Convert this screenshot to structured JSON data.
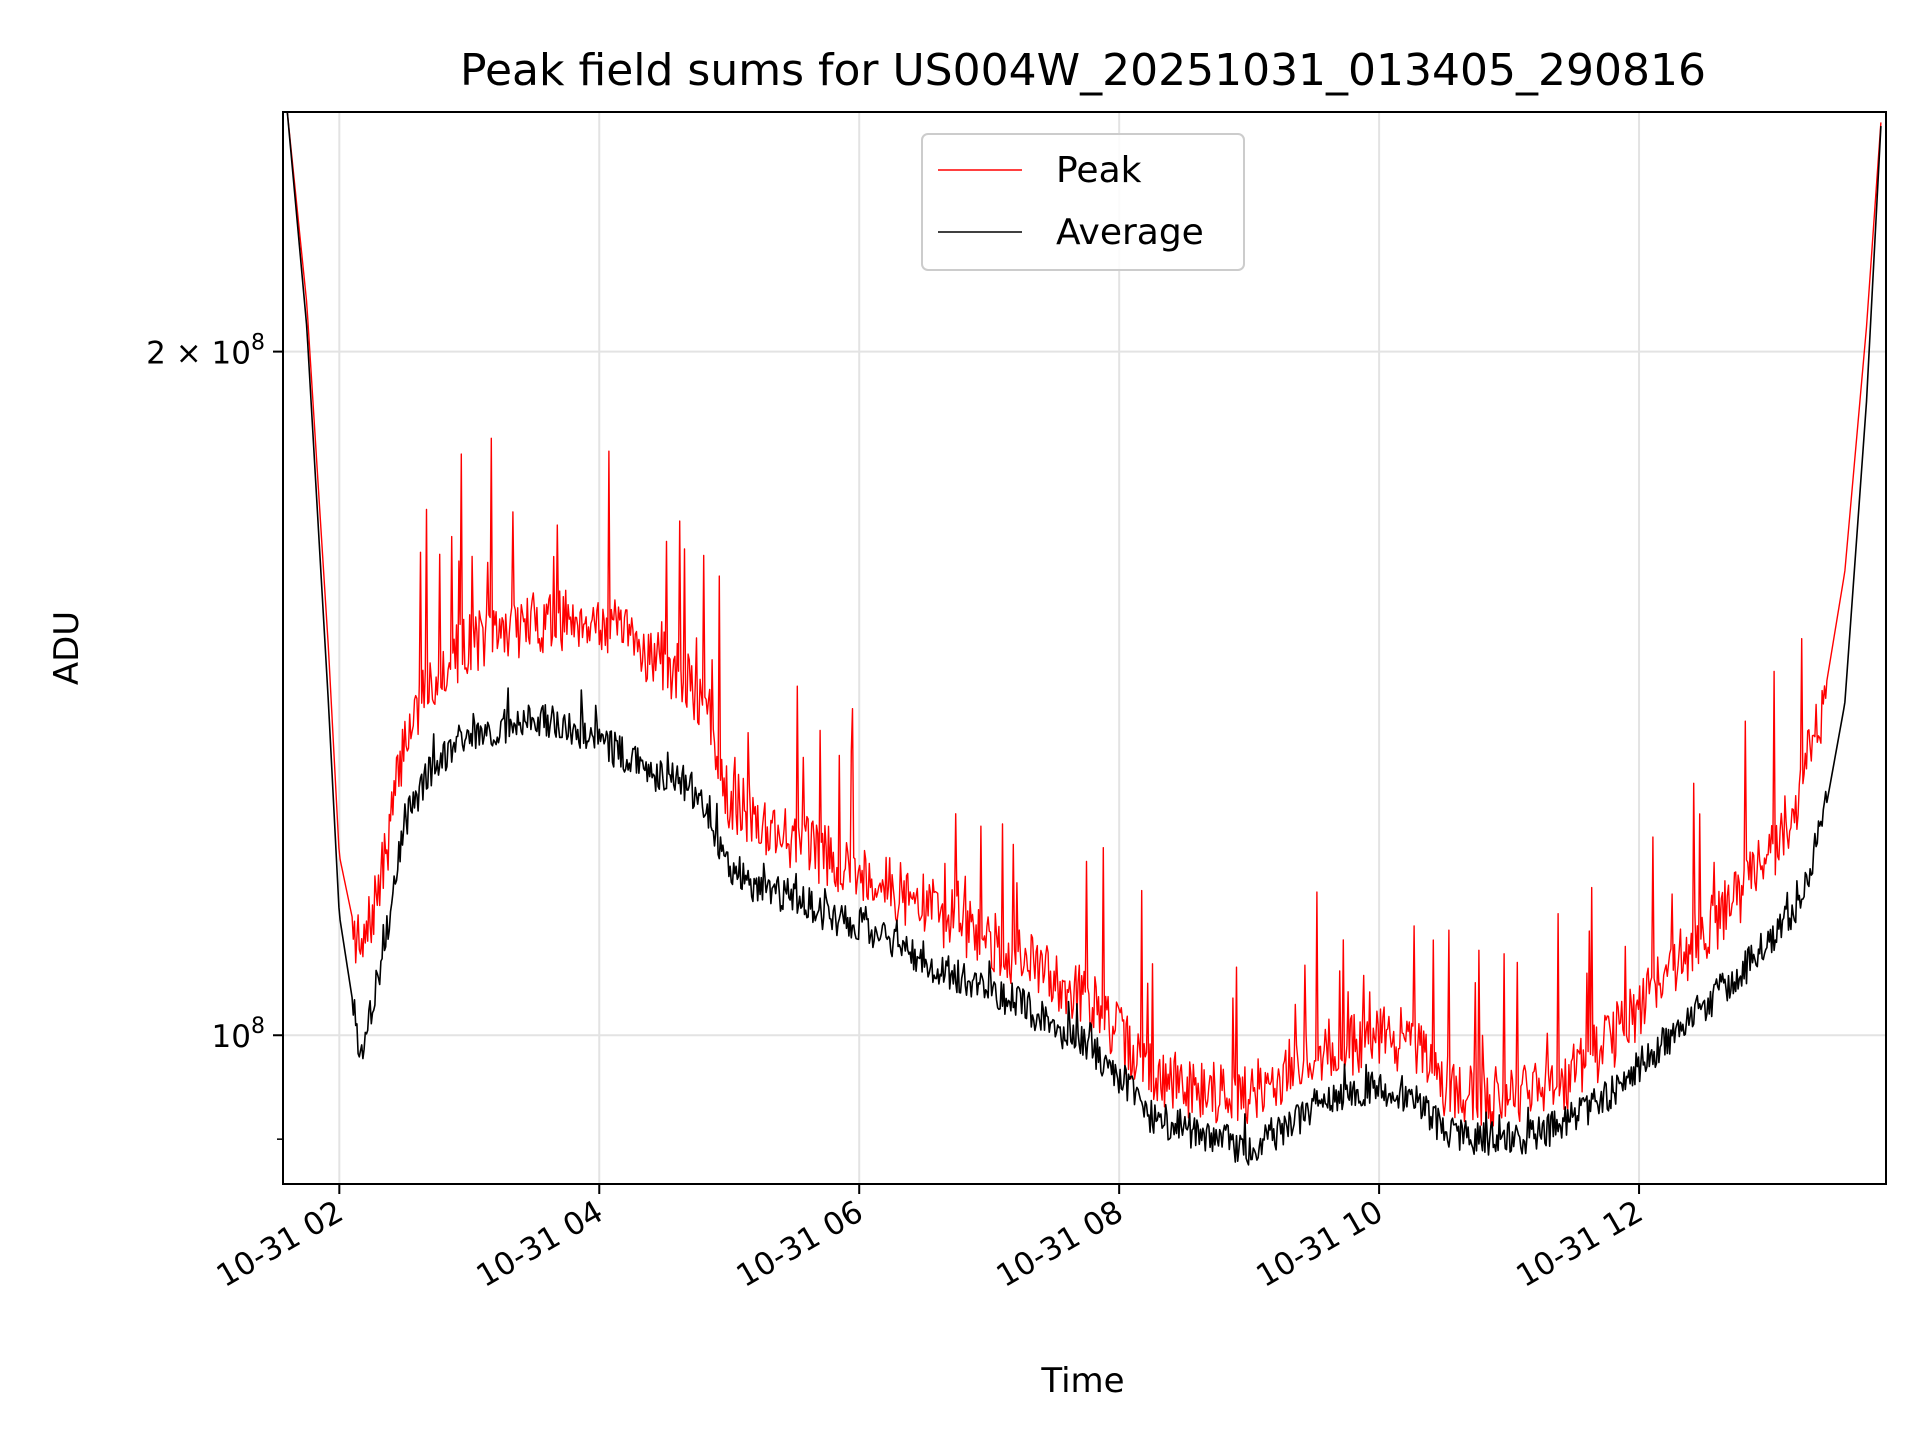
{
  "chart_data": {
    "type": "line",
    "title": "Peak field sums for US004W_20251031_013405_290816",
    "xlabel": "Time",
    "ylabel": "ADU",
    "y_scale": "log",
    "xlim": [
      "2025-10-31T01:34",
      "2025-10-31T13:54"
    ],
    "ylim": [
      86000000,
      255000000
    ],
    "grid": true,
    "legend_position": "top-center",
    "x_ticks": [
      "10-31 02",
      "10-31 04",
      "10-31 06",
      "10-31 08",
      "10-31 10",
      "10-31 12"
    ],
    "x_tick_times": [
      "2025-10-31T02:00",
      "2025-10-31T04:00",
      "2025-10-31T06:00",
      "2025-10-31T08:00",
      "2025-10-31T10:00",
      "2025-10-31T12:00"
    ],
    "y_ticks": [
      {
        "value": 200000000,
        "label": "2 × 10",
        "exp": "8"
      },
      {
        "value": 100000000,
        "label": "10",
        "exp": "8"
      }
    ],
    "series": [
      {
        "name": "Peak",
        "color": "#ff0000",
        "x": [
          "2025-10-31T01:36",
          "2025-10-31T01:45",
          "2025-10-31T01:55",
          "2025-10-31T02:00",
          "2025-10-31T02:10",
          "2025-10-31T02:20",
          "2025-10-31T02:30",
          "2025-10-31T02:40",
          "2025-10-31T02:50",
          "2025-10-31T03:00",
          "2025-10-31T03:10",
          "2025-10-31T03:20",
          "2025-10-31T03:30",
          "2025-10-31T03:40",
          "2025-10-31T03:50",
          "2025-10-31T04:00",
          "2025-10-31T04:10",
          "2025-10-31T04:20",
          "2025-10-31T04:30",
          "2025-10-31T04:40",
          "2025-10-31T04:50",
          "2025-10-31T05:00",
          "2025-10-31T05:15",
          "2025-10-31T05:30",
          "2025-10-31T05:45",
          "2025-10-31T06:00",
          "2025-10-31T06:15",
          "2025-10-31T06:30",
          "2025-10-31T06:45",
          "2025-10-31T07:00",
          "2025-10-31T07:15",
          "2025-10-31T07:30",
          "2025-10-31T07:45",
          "2025-10-31T08:00",
          "2025-10-31T08:15",
          "2025-10-31T08:30",
          "2025-10-31T08:45",
          "2025-10-31T09:00",
          "2025-10-31T09:15",
          "2025-10-31T09:30",
          "2025-10-31T09:45",
          "2025-10-31T10:00",
          "2025-10-31T10:15",
          "2025-10-31T10:30",
          "2025-10-31T10:45",
          "2025-10-31T11:00",
          "2025-10-31T11:15",
          "2025-10-31T11:30",
          "2025-10-31T11:45",
          "2025-10-31T12:00",
          "2025-10-31T12:15",
          "2025-10-31T12:30",
          "2025-10-31T12:45",
          "2025-10-31T13:00",
          "2025-10-31T13:15",
          "2025-10-31T13:25",
          "2025-10-31T13:35",
          "2025-10-31T13:45",
          "2025-10-31T13:52"
        ],
        "values": [
          255000000,
          210000000,
          148000000,
          120000000,
          108000000,
          118000000,
          135000000,
          142000000,
          146000000,
          149000000,
          150000000,
          151000000,
          152000000,
          152000000,
          153000000,
          152000000,
          150000000,
          148000000,
          146000000,
          143000000,
          139000000,
          127000000,
          124000000,
          122000000,
          120000000,
          118000000,
          116000000,
          114000000,
          112000000,
          110000000,
          108000000,
          106000000,
          104000000,
          100000000,
          96000000,
          95000000,
          94500000,
          94000000,
          96000000,
          98000000,
          99000000,
          100000000,
          99000000,
          95000000,
          94000000,
          94000000,
          94500000,
          96000000,
          99000000,
          103000000,
          107000000,
          111000000,
          115000000,
          120000000,
          128000000,
          140000000,
          160000000,
          205000000,
          255000000
        ]
      },
      {
        "name": "Average",
        "color": "#000000",
        "x": [
          "2025-10-31T01:36",
          "2025-10-31T01:45",
          "2025-10-31T01:55",
          "2025-10-31T02:00",
          "2025-10-31T02:10",
          "2025-10-31T02:20",
          "2025-10-31T02:30",
          "2025-10-31T02:40",
          "2025-10-31T02:50",
          "2025-10-31T03:00",
          "2025-10-31T03:10",
          "2025-10-31T03:20",
          "2025-10-31T03:30",
          "2025-10-31T03:40",
          "2025-10-31T03:50",
          "2025-10-31T04:00",
          "2025-10-31T04:10",
          "2025-10-31T04:20",
          "2025-10-31T04:30",
          "2025-10-31T04:40",
          "2025-10-31T04:50",
          "2025-10-31T05:00",
          "2025-10-31T05:15",
          "2025-10-31T05:30",
          "2025-10-31T05:45",
          "2025-10-31T06:00",
          "2025-10-31T06:15",
          "2025-10-31T06:30",
          "2025-10-31T06:45",
          "2025-10-31T07:00",
          "2025-10-31T07:15",
          "2025-10-31T07:30",
          "2025-10-31T07:45",
          "2025-10-31T08:00",
          "2025-10-31T08:15",
          "2025-10-31T08:30",
          "2025-10-31T08:45",
          "2025-10-31T09:00",
          "2025-10-31T09:15",
          "2025-10-31T09:30",
          "2025-10-31T09:45",
          "2025-10-31T10:00",
          "2025-10-31T10:15",
          "2025-10-31T10:30",
          "2025-10-31T10:45",
          "2025-10-31T11:00",
          "2025-10-31T11:15",
          "2025-10-31T11:30",
          "2025-10-31T11:45",
          "2025-10-31T12:00",
          "2025-10-31T12:15",
          "2025-10-31T12:30",
          "2025-10-31T12:45",
          "2025-10-31T13:00",
          "2025-10-31T13:15",
          "2025-10-31T13:25",
          "2025-10-31T13:35",
          "2025-10-31T13:45",
          "2025-10-31T13:52"
        ],
        "values": [
          255000000,
          205000000,
          140000000,
          113000000,
          98000000,
          108000000,
          124000000,
          130000000,
          133000000,
          135000000,
          136000000,
          137000000,
          138000000,
          137000000,
          136000000,
          135000000,
          133000000,
          131000000,
          130000000,
          129000000,
          126000000,
          118000000,
          116000000,
          115000000,
          113000000,
          112000000,
          110000000,
          108000000,
          106000000,
          105000000,
          103000000,
          101000000,
          99000000,
          96000000,
          92000000,
          91000000,
          90000000,
          89000000,
          91000000,
          93000000,
          94000000,
          95000000,
          94000000,
          91000000,
          90000000,
          90000000,
          90500000,
          92000000,
          94000000,
          97000000,
          100000000,
          103000000,
          106000000,
          110000000,
          115000000,
          124000000,
          140000000,
          190000000,
          255000000
        ]
      }
    ]
  }
}
